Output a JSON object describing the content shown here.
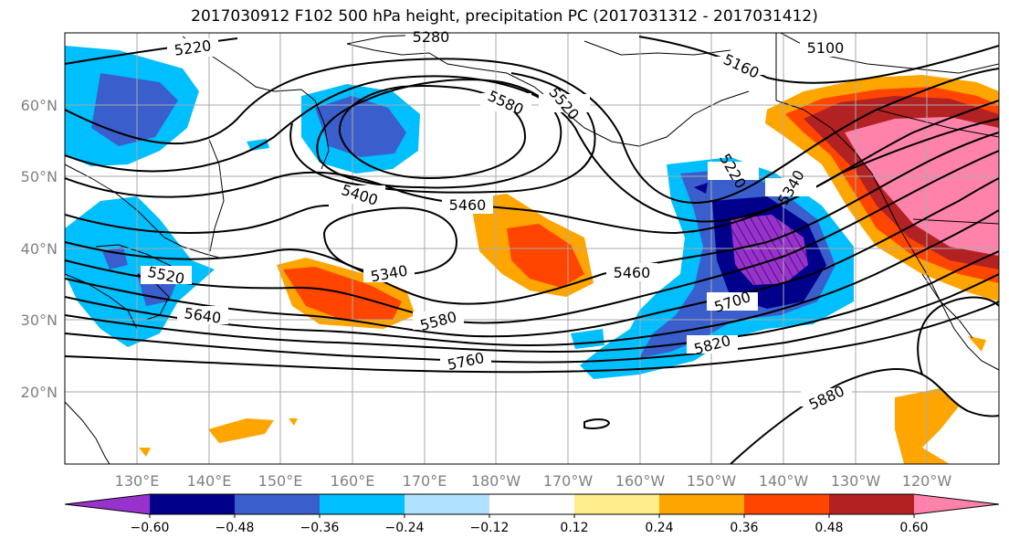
{
  "title": "2017030912 F102 500 hPa height, precipitation PC (2017031312 - 2017031412)",
  "lat_labels": [
    "60°N",
    "50°N",
    "40°N",
    "30°N",
    "20°N"
  ],
  "lon_labels": [
    "130°E",
    "140°E",
    "150°E",
    "160°E",
    "170°E",
    "180°W",
    "170°W",
    "160°W",
    "150°W",
    "140°W",
    "130°W",
    "120°W"
  ],
  "contour_labels": [
    "5220",
    "5280",
    "5100",
    "5160",
    "5580",
    "5520",
    "5220",
    "5340",
    "5400",
    "5460",
    "5340",
    "5520",
    "5640",
    "5580",
    "5460",
    "5700",
    "5820",
    "5760",
    "5880"
  ],
  "colorbar": {
    "colors": [
      "#9932CC",
      "#00008B",
      "#3A5FCD",
      "#00BFFF",
      "#B0E2FF",
      "#FFFFFF",
      "#FFEC8B",
      "#FFA500",
      "#FF4500",
      "#B22222",
      "#FF82AB"
    ],
    "tick_labels": [
      "−0.60",
      "−0.48",
      "−0.36",
      "−0.24",
      "−0.12",
      "0.12",
      "0.24",
      "0.36",
      "0.48",
      "0.60"
    ]
  }
}
